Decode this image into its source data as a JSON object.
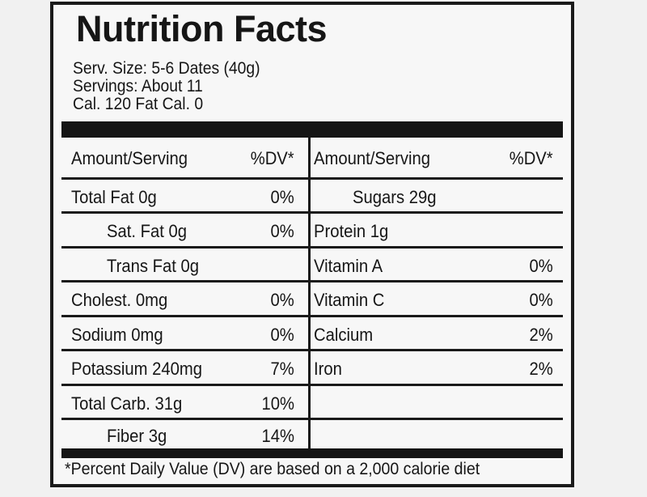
{
  "title": "Nutrition Facts",
  "serving_size": "Serv. Size: 5-6 Dates (40g)",
  "servings": "Servings: About 11",
  "calories": "Cal. 120 Fat Cal. 0",
  "left_header": {
    "amount": "Amount/Serving",
    "dv": "%DV*"
  },
  "right_header": {
    "amount": "Amount/Serving",
    "dv": "%DV*"
  },
  "left_rows": [
    {
      "name": "Total Fat 0g",
      "dv": "0%"
    },
    {
      "name": "Sat. Fat 0g",
      "dv": "0%"
    },
    {
      "name": "Trans Fat 0g",
      "dv": ""
    },
    {
      "name": "Cholest. 0mg",
      "dv": "0%"
    },
    {
      "name": "Sodium 0mg",
      "dv": "0%"
    },
    {
      "name": "Potassium 240mg",
      "dv": "7%"
    },
    {
      "name": "Total Carb. 31g",
      "dv": "10%"
    },
    {
      "name": "Fiber 3g",
      "dv": "14%"
    }
  ],
  "right_rows": [
    {
      "name": "Sugars 29g",
      "dv": ""
    },
    {
      "name": "Protein 1g",
      "dv": ""
    },
    {
      "name": "Vitamin A",
      "dv": "0%"
    },
    {
      "name": "Vitamin C",
      "dv": "0%"
    },
    {
      "name": "Calcium",
      "dv": "2%"
    },
    {
      "name": "Iron",
      "dv": "2%"
    }
  ],
  "footnote": "*Percent Daily Value (DV) are based on a 2,000 calorie diet"
}
